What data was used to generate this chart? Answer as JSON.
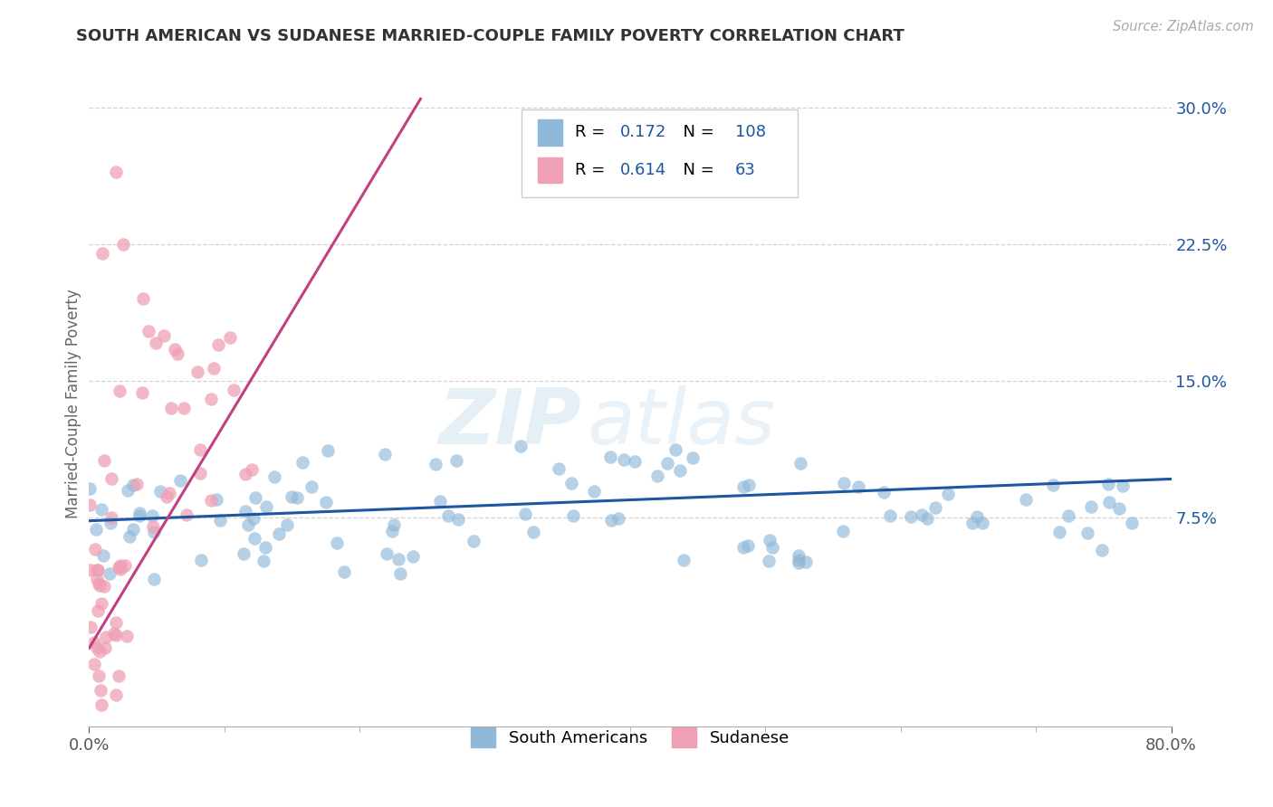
{
  "title": "SOUTH AMERICAN VS SUDANESE MARRIED-COUPLE FAMILY POVERTY CORRELATION CHART",
  "source": "Source: ZipAtlas.com",
  "ylabel": "Married-Couple Family Poverty",
  "xlim": [
    0.0,
    0.8
  ],
  "ylim": [
    -0.04,
    0.315
  ],
  "xtick_pos": [
    0.0,
    0.8
  ],
  "xtick_labels": [
    "0.0%",
    "80.0%"
  ],
  "yticks_right": [
    0.075,
    0.15,
    0.225,
    0.3
  ],
  "ytick_right_labels": [
    "7.5%",
    "15.0%",
    "22.5%",
    "30.0%"
  ],
  "blue_color": "#90b8d8",
  "pink_color": "#f0a0b4",
  "blue_line_color": "#1e56a0",
  "pink_line_color": "#c04080",
  "r_blue": 0.172,
  "n_blue": 108,
  "r_pink": 0.614,
  "n_pink": 63,
  "legend_label_blue": "South Americans",
  "legend_label_pink": "Sudanese",
  "watermark_zip": "ZIP",
  "watermark_atlas": "atlas",
  "background_color": "#ffffff",
  "grid_color": "#cccccc",
  "title_color": "#333333",
  "axis_label_color": "#666666",
  "blue_trend_x": [
    0.0,
    0.8
  ],
  "blue_trend_y": [
    0.073,
    0.096
  ],
  "pink_trend_x": [
    0.0,
    0.245
  ],
  "pink_trend_y": [
    0.003,
    0.305
  ]
}
